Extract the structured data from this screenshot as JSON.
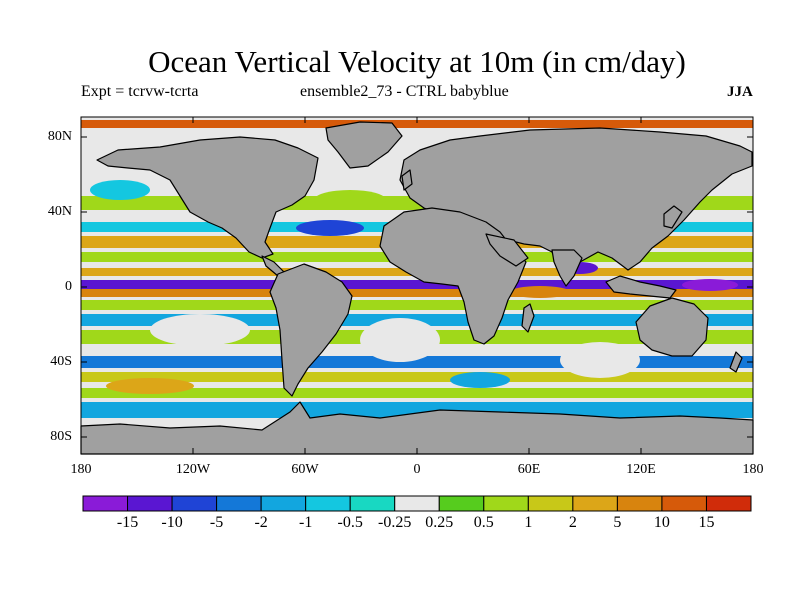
{
  "title": "Ocean Vertical Velocity at 10m (in cm/day)",
  "subtitle_left": "Expt = tcrvw-tcrta",
  "subtitle_center": "ensemble2_73 - CTRL babyblue",
  "season": "JJA",
  "lat_ticks": [
    "80N",
    "40N",
    "0",
    "40S",
    "80S"
  ],
  "lon_ticks": [
    "180",
    "120W",
    "60W",
    "0",
    "60E",
    "120E",
    "180"
  ],
  "colorbar": {
    "labels": [
      "-15",
      "-10",
      "-5",
      "-2",
      "-1",
      "-0.5",
      "-0.25",
      "0.25",
      "0.5",
      "1",
      "2",
      "5",
      "10",
      "15"
    ],
    "colors": [
      "#8a1bd8",
      "#5a16d2",
      "#1f44d6",
      "#1478d8",
      "#12a6df",
      "#14c7e0",
      "#18d8c2",
      "#e8e8e8",
      "#56cc1e",
      "#a0d81a",
      "#c8c818",
      "#dca618",
      "#d8840e",
      "#d65a0a",
      "#d02c0a"
    ]
  },
  "colors": {
    "land": "#a0a0a0",
    "neutral": "#e8e8e8",
    "coast": "#000000"
  }
}
